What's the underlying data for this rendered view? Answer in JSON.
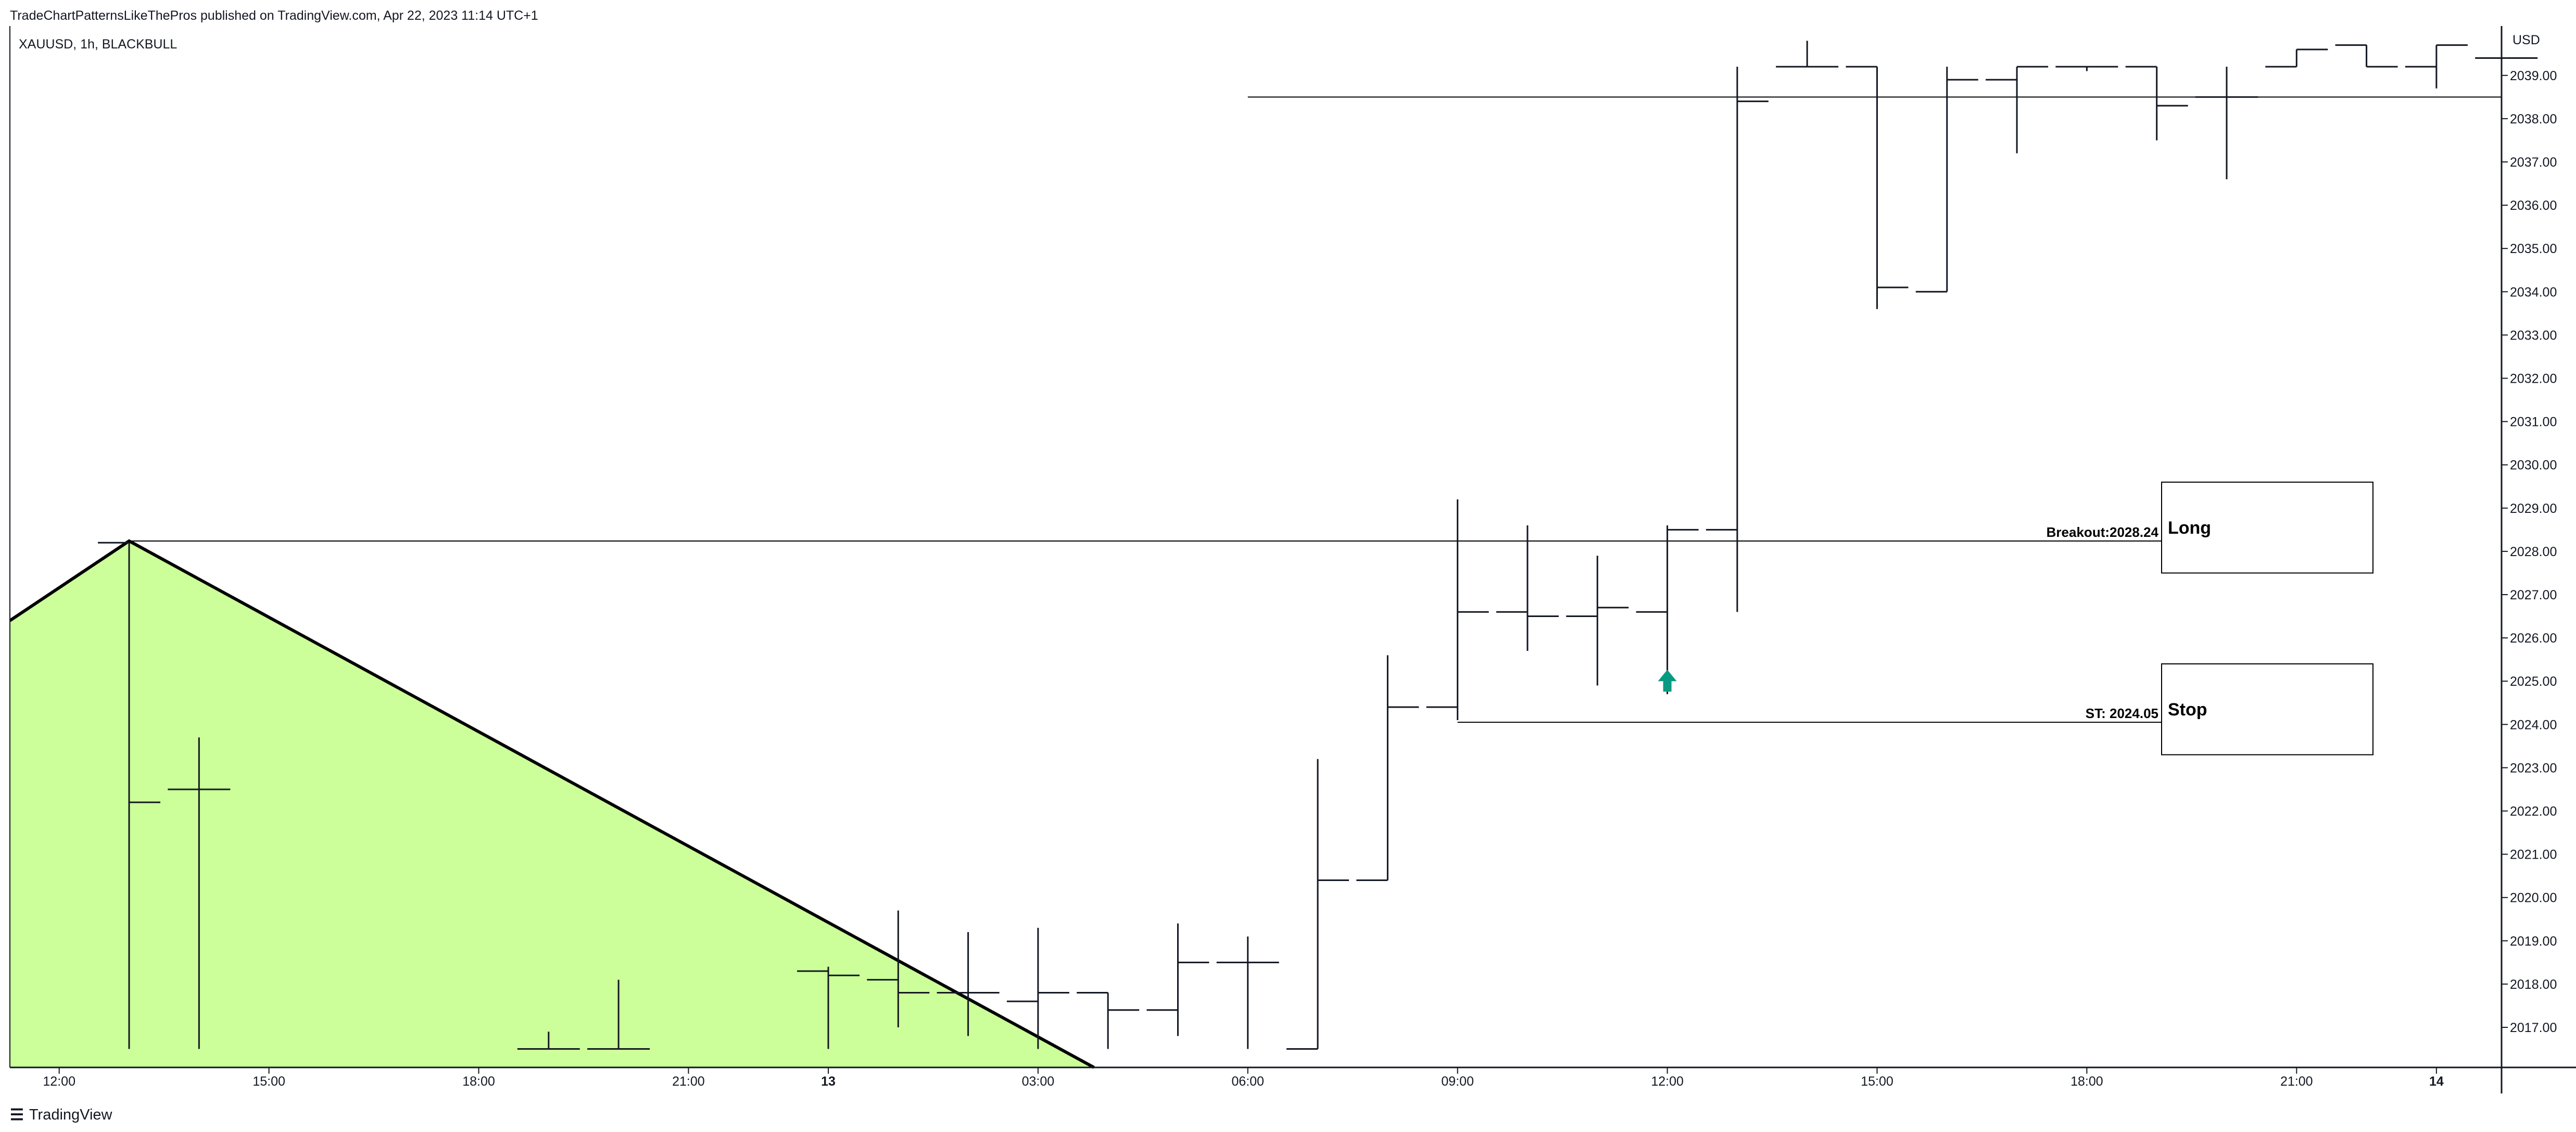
{
  "header": {
    "published_text": "TradeChartPatternsLikeThePros published on TradingView.com, Apr 22, 2023 11:14 UTC+1",
    "symbol_text": "XAUUSD, 1h, BLACKBULL"
  },
  "footer": {
    "brand": "TradingView",
    "logo_icon": "tradingview-logo-icon"
  },
  "colors": {
    "triangle_fill": "#ccff99",
    "up_arrow": "#089981",
    "bar": "#131722",
    "line": "#000000"
  },
  "chart_data": {
    "type": "ohlc",
    "currency_label": "USD",
    "y_ticks": [
      "2017.00",
      "2018.00",
      "2019.00",
      "2020.00",
      "2021.00",
      "2022.00",
      "2023.00",
      "2024.00",
      "2025.00",
      "2026.00",
      "2027.00",
      "2028.00",
      "2029.00",
      "2030.00",
      "2031.00",
      "2032.00",
      "2033.00",
      "2034.00",
      "2035.00",
      "2036.00",
      "2037.00",
      "2038.00",
      "2039.00"
    ],
    "x_ticks": [
      {
        "label": "12:00",
        "bold": false,
        "t": -1
      },
      {
        "label": "15:00",
        "bold": false,
        "t": 2
      },
      {
        "label": "18:00",
        "bold": false,
        "t": 5
      },
      {
        "label": "21:00",
        "bold": false,
        "t": 8
      },
      {
        "label": "13",
        "bold": true,
        "t": 10
      },
      {
        "label": "03:00",
        "bold": false,
        "t": 13
      },
      {
        "label": "06:00",
        "bold": false,
        "t": 16
      },
      {
        "label": "09:00",
        "bold": false,
        "t": 19
      },
      {
        "label": "12:00",
        "bold": false,
        "t": 22
      },
      {
        "label": "15:00",
        "bold": false,
        "t": 25
      },
      {
        "label": "18:00",
        "bold": false,
        "t": 28
      },
      {
        "label": "21:00",
        "bold": false,
        "t": 31
      },
      {
        "label": "14",
        "bold": true,
        "t": 33
      }
    ],
    "bars": [
      {
        "t": 0,
        "o": 2028.2,
        "h": 2028.2,
        "l": 2016.5,
        "c": 2022.2
      },
      {
        "t": 1,
        "o": 2022.5,
        "h": 2023.7,
        "l": 2016.5,
        "c": 2022.5
      },
      {
        "t": 6,
        "o": 2016.5,
        "h": 2016.9,
        "l": 2016.5,
        "c": 2016.5
      },
      {
        "t": 7,
        "o": 2016.5,
        "h": 2018.1,
        "l": 2016.5,
        "c": 2016.5
      },
      {
        "t": 10,
        "o": 2018.3,
        "h": 2018.4,
        "l": 2016.5,
        "c": 2018.2
      },
      {
        "t": 11,
        "o": 2018.1,
        "h": 2019.7,
        "l": 2017.0,
        "c": 2017.8
      },
      {
        "t": 12,
        "o": 2017.8,
        "h": 2019.2,
        "l": 2016.8,
        "c": 2017.8
      },
      {
        "t": 13,
        "o": 2017.6,
        "h": 2019.3,
        "l": 2016.5,
        "c": 2017.8
      },
      {
        "t": 14,
        "o": 2017.8,
        "h": 2017.8,
        "l": 2016.5,
        "c": 2017.4
      },
      {
        "t": 15,
        "o": 2017.4,
        "h": 2019.4,
        "l": 2016.8,
        "c": 2018.5
      },
      {
        "t": 16,
        "o": 2018.5,
        "h": 2019.1,
        "l": 2016.5,
        "c": 2018.5
      },
      {
        "t": 17,
        "o": 2016.5,
        "h": 2023.2,
        "l": 2016.5,
        "c": 2020.4
      },
      {
        "t": 18,
        "o": 2020.4,
        "h": 2025.6,
        "l": 2020.4,
        "c": 2024.4
      },
      {
        "t": 19,
        "o": 2024.4,
        "h": 2029.2,
        "l": 2024.1,
        "c": 2026.6
      },
      {
        "t": 20,
        "o": 2026.6,
        "h": 2028.6,
        "l": 2025.7,
        "c": 2026.5
      },
      {
        "t": 21,
        "o": 2026.5,
        "h": 2027.9,
        "l": 2024.9,
        "c": 2026.7
      },
      {
        "t": 22,
        "o": 2026.6,
        "h": 2028.6,
        "l": 2024.7,
        "c": 2028.5
      },
      {
        "t": 23,
        "o": 2028.5,
        "h": 2039.2,
        "l": 2026.6,
        "c": 2038.4
      },
      {
        "t": 24,
        "o": 2039.2,
        "h": 2039.8,
        "l": 2039.2,
        "c": 2039.2
      },
      {
        "t": 25,
        "o": 2039.2,
        "h": 2039.2,
        "l": 2033.6,
        "c": 2034.1
      },
      {
        "t": 26,
        "o": 2034.0,
        "h": 2039.2,
        "l": 2034.0,
        "c": 2038.9
      },
      {
        "t": 27,
        "o": 2038.9,
        "h": 2039.2,
        "l": 2037.2,
        "c": 2039.2
      },
      {
        "t": 28,
        "o": 2039.2,
        "h": 2039.2,
        "l": 2039.1,
        "c": 2039.2
      },
      {
        "t": 29,
        "o": 2039.2,
        "h": 2039.2,
        "l": 2037.5,
        "c": 2038.3
      },
      {
        "t": 30,
        "o": 2038.5,
        "h": 2039.2,
        "l": 2036.6,
        "c": 2038.5
      },
      {
        "t": 31,
        "o": 2039.2,
        "h": 2039.2,
        "l": 2039.5,
        "c": 2039.6
      },
      {
        "t": 32,
        "o": 2039.7,
        "h": 2039.2,
        "l": 2039.5,
        "c": 2039.2
      },
      {
        "t": 33,
        "o": 2039.2,
        "h": 2039.2,
        "l": 2038.7,
        "c": 2039.7
      },
      {
        "t": 34,
        "o": 2039.4,
        "h": 2039.4,
        "l": 2039.4,
        "c": 2039.4
      }
    ],
    "triangle": {
      "peak_t": 0,
      "peak_price": 2028.24,
      "left_price": 2026.4,
      "end_t": 13.8,
      "end_price": 2016.5
    },
    "resistance_line": {
      "t_start": 16,
      "price": 2038.5
    },
    "breakout": {
      "label": "Breakout:2028.24",
      "price": 2028.24,
      "t_start": 0
    },
    "stop": {
      "label": "ST: 2024.05",
      "price": 2024.05,
      "t_start": 19
    },
    "long_box": {
      "label": "Long",
      "price_top": 2029.6,
      "price_bottom": 2027.5
    },
    "stop_box": {
      "label": "Stop",
      "price_top": 2025.4,
      "price_bottom": 2023.3
    },
    "signal_arrow": {
      "t": 22,
      "price": 2025.0
    }
  }
}
